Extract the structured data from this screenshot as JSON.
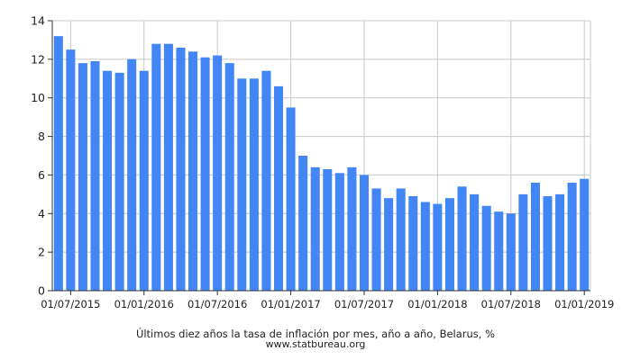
{
  "chart_data": {
    "type": "bar",
    "title": "Últimos diez años la tasa de inflación por mes, año a año, Belarus, %",
    "source": "www.statbureau.org",
    "xlabel": "",
    "ylabel": "",
    "ylim": [
      0,
      14
    ],
    "yticks": [
      "0",
      "2",
      "4",
      "6",
      "8",
      "10",
      "12",
      "14"
    ],
    "xticks": [
      {
        "label": "01/07/2015",
        "index": 1
      },
      {
        "label": "01/01/2016",
        "index": 7
      },
      {
        "label": "01/07/2016",
        "index": 13
      },
      {
        "label": "01/01/2017",
        "index": 19
      },
      {
        "label": "01/07/2017",
        "index": 25
      },
      {
        "label": "01/01/2018",
        "index": 31
      },
      {
        "label": "01/07/2018",
        "index": 37
      },
      {
        "label": "01/01/2019",
        "index": 43
      }
    ],
    "grid": true,
    "bar_color": "#4285f4",
    "categories": [
      "2015-06",
      "2015-07",
      "2015-08",
      "2015-09",
      "2015-10",
      "2015-11",
      "2015-12",
      "2016-01",
      "2016-02",
      "2016-03",
      "2016-04",
      "2016-05",
      "2016-06",
      "2016-07",
      "2016-08",
      "2016-09",
      "2016-10",
      "2016-11",
      "2016-12",
      "2017-01",
      "2017-02",
      "2017-03",
      "2017-04",
      "2017-05",
      "2017-06",
      "2017-07",
      "2017-08",
      "2017-09",
      "2017-10",
      "2017-11",
      "2017-12",
      "2018-01",
      "2018-02",
      "2018-03",
      "2018-04",
      "2018-05",
      "2018-06",
      "2018-07",
      "2018-08",
      "2018-09",
      "2018-10",
      "2018-11",
      "2018-12",
      "2019-01"
    ],
    "values": [
      13.2,
      12.5,
      11.8,
      11.9,
      11.4,
      11.3,
      12.0,
      11.4,
      12.8,
      12.8,
      12.6,
      12.4,
      12.1,
      12.2,
      11.8,
      11.0,
      11.0,
      11.4,
      10.6,
      9.5,
      7.0,
      6.4,
      6.3,
      6.1,
      6.4,
      6.0,
      5.3,
      4.8,
      5.3,
      4.9,
      4.6,
      4.5,
      4.8,
      5.4,
      5.0,
      4.4,
      4.1,
      4.0,
      5.0,
      5.6,
      4.9,
      5.0,
      5.6,
      5.8
    ]
  }
}
